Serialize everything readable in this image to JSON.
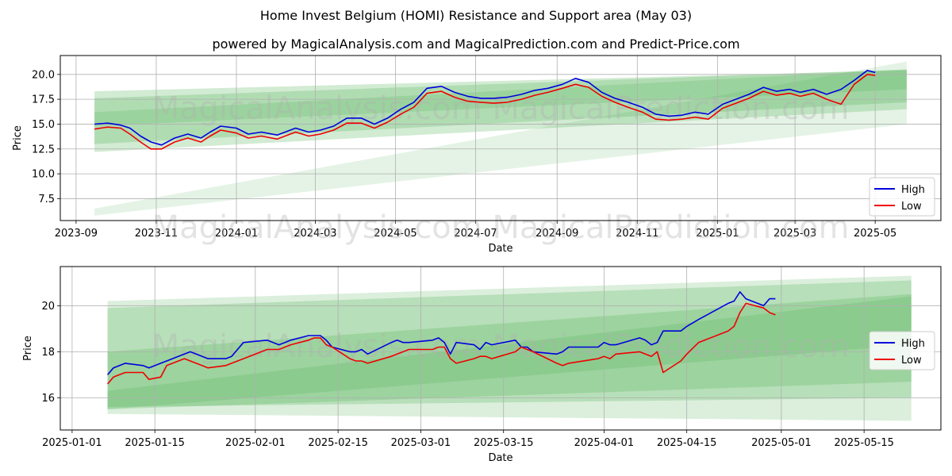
{
  "title": "Home Invest Belgium (HOMI) Resistance and Support area (May 03)",
  "subtitle": "powered by MagicalAnalysis.com and MagicalPrediction.com and Predict-Price.com",
  "watermarks": [
    "MagicalAnalysis.com",
    "MagicalPrediction.com"
  ],
  "colors": {
    "high": "#0000dd",
    "low": "#ee0000",
    "band": "#4caf50",
    "grid": "#b0b0b0"
  },
  "chart_data": [
    {
      "type": "line",
      "xlabel": "Date",
      "ylabel": "Price",
      "x_ticks": [
        "2023-09",
        "2023-11",
        "2024-01",
        "2024-03",
        "2024-05",
        "2024-07",
        "2024-09",
        "2024-11",
        "2025-01",
        "2025-03",
        "2025-05"
      ],
      "y_ticks": [
        "7.5",
        "10.0",
        "12.5",
        "15.0",
        "17.5",
        "20.0"
      ],
      "xlim": [
        "2023-08-20",
        "2025-06-20"
      ],
      "ylim": [
        5.3,
        21.9
      ],
      "grid": true,
      "legend": {
        "position": "lower right",
        "entries": [
          "High",
          "Low"
        ]
      },
      "bands": [
        {
          "x": [
            "2023-09-15",
            "2025-05-25"
          ],
          "upper": [
            18.3,
            20.4
          ],
          "lower": [
            12.2,
            16.5
          ],
          "opacity": 0.25
        },
        {
          "x": [
            "2023-09-15",
            "2025-05-25"
          ],
          "upper": [
            17.6,
            20.5
          ],
          "lower": [
            13.0,
            17.2
          ],
          "opacity": 0.25
        },
        {
          "x": [
            "2023-09-15",
            "2025-05-25"
          ],
          "upper": [
            16.2,
            20.5
          ],
          "lower": [
            14.8,
            18.5
          ],
          "opacity": 0.2
        },
        {
          "x": [
            "2023-09-15",
            "2025-05-25"
          ],
          "upper": [
            6.5,
            21.3
          ],
          "lower": [
            5.8,
            15.0
          ],
          "opacity": 0.15
        }
      ],
      "series": [
        {
          "name": "High",
          "x": [
            "2023-09-15",
            "2023-09-25",
            "2023-10-05",
            "2023-10-12",
            "2023-10-20",
            "2023-10-28",
            "2023-11-05",
            "2023-11-15",
            "2023-11-25",
            "2023-12-05",
            "2023-12-12",
            "2023-12-20",
            "2024-01-01",
            "2024-01-10",
            "2024-01-20",
            "2024-02-01",
            "2024-02-15",
            "2024-02-25",
            "2024-03-05",
            "2024-03-15",
            "2024-03-25",
            "2024-04-05",
            "2024-04-15",
            "2024-04-25",
            "2024-05-05",
            "2024-05-15",
            "2024-05-25",
            "2024-06-05",
            "2024-06-15",
            "2024-06-25",
            "2024-07-05",
            "2024-07-15",
            "2024-07-25",
            "2024-08-05",
            "2024-08-15",
            "2024-08-25",
            "2024-09-05",
            "2024-09-15",
            "2024-09-25",
            "2024-10-05",
            "2024-10-15",
            "2024-10-25",
            "2024-11-05",
            "2024-11-15",
            "2024-11-25",
            "2024-12-05",
            "2024-12-15",
            "2024-12-25",
            "2025-01-05",
            "2025-01-15",
            "2025-01-25",
            "2025-02-05",
            "2025-02-15",
            "2025-02-25",
            "2025-03-05",
            "2025-03-15",
            "2025-03-25",
            "2025-04-05",
            "2025-04-15",
            "2025-04-25",
            "2025-05-01"
          ],
          "values": [
            15.0,
            15.1,
            14.9,
            14.6,
            13.8,
            13.2,
            12.9,
            13.6,
            14.0,
            13.6,
            14.2,
            14.8,
            14.6,
            14.0,
            14.2,
            13.9,
            14.6,
            14.2,
            14.4,
            14.8,
            15.6,
            15.6,
            15.0,
            15.6,
            16.5,
            17.2,
            18.6,
            18.8,
            18.2,
            17.8,
            17.6,
            17.6,
            17.7,
            18.0,
            18.4,
            18.6,
            19.0,
            19.6,
            19.2,
            18.2,
            17.6,
            17.2,
            16.7,
            16.0,
            15.8,
            15.9,
            16.2,
            16.0,
            17.0,
            17.5,
            18.0,
            18.7,
            18.3,
            18.5,
            18.2,
            18.5,
            18.0,
            18.5,
            19.4,
            20.4,
            20.2
          ]
        },
        {
          "name": "Low",
          "x": [
            "2023-09-15",
            "2023-09-25",
            "2023-10-05",
            "2023-10-12",
            "2023-10-20",
            "2023-10-28",
            "2023-11-05",
            "2023-11-15",
            "2023-11-25",
            "2023-12-05",
            "2023-12-12",
            "2023-12-20",
            "2024-01-01",
            "2024-01-10",
            "2024-01-20",
            "2024-02-01",
            "2024-02-15",
            "2024-02-25",
            "2024-03-05",
            "2024-03-15",
            "2024-03-25",
            "2024-04-05",
            "2024-04-15",
            "2024-04-25",
            "2024-05-05",
            "2024-05-15",
            "2024-05-25",
            "2024-06-05",
            "2024-06-15",
            "2024-06-25",
            "2024-07-05",
            "2024-07-15",
            "2024-07-25",
            "2024-08-05",
            "2024-08-15",
            "2024-08-25",
            "2024-09-05",
            "2024-09-15",
            "2024-09-25",
            "2024-10-05",
            "2024-10-15",
            "2024-10-25",
            "2024-11-05",
            "2024-11-15",
            "2024-11-25",
            "2024-12-05",
            "2024-12-15",
            "2024-12-25",
            "2025-01-05",
            "2025-01-15",
            "2025-01-25",
            "2025-02-05",
            "2025-02-15",
            "2025-02-25",
            "2025-03-05",
            "2025-03-15",
            "2025-03-25",
            "2025-04-05",
            "2025-04-15",
            "2025-04-25",
            "2025-05-01"
          ],
          "values": [
            14.5,
            14.7,
            14.6,
            14.0,
            13.2,
            12.5,
            12.5,
            13.2,
            13.6,
            13.2,
            13.8,
            14.4,
            14.1,
            13.6,
            13.8,
            13.5,
            14.2,
            13.8,
            14.0,
            14.4,
            15.1,
            15.1,
            14.6,
            15.2,
            16.0,
            16.7,
            18.1,
            18.3,
            17.7,
            17.3,
            17.2,
            17.1,
            17.2,
            17.5,
            17.9,
            18.2,
            18.6,
            19.0,
            18.7,
            17.8,
            17.2,
            16.7,
            16.2,
            15.5,
            15.4,
            15.5,
            15.7,
            15.5,
            16.6,
            17.1,
            17.6,
            18.3,
            17.9,
            18.1,
            17.8,
            18.1,
            17.5,
            17.0,
            19.0,
            20.0,
            19.9
          ]
        }
      ]
    },
    {
      "type": "line",
      "xlabel": "Date",
      "ylabel": "Price",
      "x_ticks": [
        "2025-01-01",
        "2025-01-15",
        "2025-02-01",
        "2025-02-15",
        "2025-03-01",
        "2025-03-15",
        "2025-04-01",
        "2025-04-15",
        "2025-05-01",
        "2025-05-15"
      ],
      "y_ticks": [
        "16",
        "18",
        "20"
      ],
      "xlim": [
        "2024-12-30",
        "2025-05-28"
      ],
      "ylim": [
        14.6,
        21.7
      ],
      "grid": true,
      "legend": {
        "position": "center right",
        "entries": [
          "High",
          "Low"
        ]
      },
      "bands": [
        {
          "x": [
            "2025-01-07",
            "2025-05-23"
          ],
          "upper": [
            20.2,
            21.3
          ],
          "lower": [
            15.3,
            15.0
          ],
          "opacity": 0.2
        },
        {
          "x": [
            "2025-01-07",
            "2025-05-23"
          ],
          "upper": [
            19.9,
            21.1
          ],
          "lower": [
            15.6,
            16.0
          ],
          "opacity": 0.25
        },
        {
          "x": [
            "2025-01-07",
            "2025-05-23"
          ],
          "upper": [
            18.0,
            20.5
          ],
          "lower": [
            15.5,
            16.7
          ],
          "opacity": 0.25
        },
        {
          "x": [
            "2025-01-07",
            "2025-05-23"
          ],
          "upper": [
            16.3,
            20.4
          ],
          "lower": [
            15.5,
            18.3
          ],
          "opacity": 0.2
        }
      ],
      "series": [
        {
          "name": "High",
          "x": [
            "2025-01-07",
            "2025-01-08",
            "2025-01-10",
            "2025-01-13",
            "2025-01-14",
            "2025-01-16",
            "2025-01-17",
            "2025-01-20",
            "2025-01-21",
            "2025-01-22",
            "2025-01-23",
            "2025-01-24",
            "2025-01-27",
            "2025-01-28",
            "2025-01-30",
            "2025-02-03",
            "2025-02-05",
            "2025-02-06",
            "2025-02-07",
            "2025-02-10",
            "2025-02-11",
            "2025-02-12",
            "2025-02-13",
            "2025-02-14",
            "2025-02-17",
            "2025-02-18",
            "2025-02-19",
            "2025-02-20",
            "2025-02-24",
            "2025-02-25",
            "2025-02-26",
            "2025-02-27",
            "2025-03-03",
            "2025-03-04",
            "2025-03-05",
            "2025-03-06",
            "2025-03-07",
            "2025-03-10",
            "2025-03-11",
            "2025-03-12",
            "2025-03-13",
            "2025-03-17",
            "2025-03-18",
            "2025-03-19",
            "2025-03-20",
            "2025-03-24",
            "2025-03-25",
            "2025-03-26",
            "2025-03-31",
            "2025-04-01",
            "2025-04-02",
            "2025-04-03",
            "2025-04-07",
            "2025-04-08",
            "2025-04-09",
            "2025-04-10",
            "2025-04-11",
            "2025-04-14",
            "2025-04-15",
            "2025-04-17",
            "2025-04-22",
            "2025-04-23",
            "2025-04-24",
            "2025-04-25",
            "2025-04-28",
            "2025-04-29",
            "2025-04-30"
          ],
          "values": [
            17.0,
            17.3,
            17.5,
            17.4,
            17.3,
            17.5,
            17.6,
            17.9,
            18.0,
            17.9,
            17.8,
            17.7,
            17.7,
            17.8,
            18.4,
            18.5,
            18.3,
            18.4,
            18.5,
            18.7,
            18.7,
            18.7,
            18.5,
            18.2,
            18.0,
            18.0,
            18.1,
            17.9,
            18.4,
            18.5,
            18.4,
            18.4,
            18.5,
            18.6,
            18.4,
            17.9,
            18.4,
            18.3,
            18.1,
            18.4,
            18.3,
            18.5,
            18.2,
            18.2,
            18.0,
            17.9,
            18.0,
            18.2,
            18.2,
            18.4,
            18.3,
            18.3,
            18.6,
            18.5,
            18.3,
            18.4,
            18.9,
            18.9,
            19.1,
            19.4,
            20.1,
            20.2,
            20.6,
            20.3,
            20.0,
            20.3,
            20.3
          ]
        },
        {
          "name": "Low",
          "x": [
            "2025-01-07",
            "2025-01-08",
            "2025-01-10",
            "2025-01-13",
            "2025-01-14",
            "2025-01-16",
            "2025-01-17",
            "2025-01-20",
            "2025-01-21",
            "2025-01-22",
            "2025-01-23",
            "2025-01-24",
            "2025-01-27",
            "2025-01-28",
            "2025-01-30",
            "2025-02-03",
            "2025-02-05",
            "2025-02-06",
            "2025-02-07",
            "2025-02-10",
            "2025-02-11",
            "2025-02-12",
            "2025-02-13",
            "2025-02-14",
            "2025-02-17",
            "2025-02-18",
            "2025-02-19",
            "2025-02-20",
            "2025-02-24",
            "2025-02-25",
            "2025-02-26",
            "2025-02-27",
            "2025-03-03",
            "2025-03-04",
            "2025-03-05",
            "2025-03-06",
            "2025-03-07",
            "2025-03-10",
            "2025-03-11",
            "2025-03-12",
            "2025-03-13",
            "2025-03-17",
            "2025-03-18",
            "2025-03-19",
            "2025-03-20",
            "2025-03-24",
            "2025-03-25",
            "2025-03-26",
            "2025-03-31",
            "2025-04-01",
            "2025-04-02",
            "2025-04-03",
            "2025-04-07",
            "2025-04-08",
            "2025-04-09",
            "2025-04-10",
            "2025-04-11",
            "2025-04-14",
            "2025-04-15",
            "2025-04-17",
            "2025-04-22",
            "2025-04-23",
            "2025-04-24",
            "2025-04-25",
            "2025-04-28",
            "2025-04-29",
            "2025-04-30"
          ],
          "values": [
            16.6,
            16.9,
            17.1,
            17.1,
            16.8,
            16.9,
            17.4,
            17.7,
            17.6,
            17.5,
            17.4,
            17.3,
            17.4,
            17.5,
            17.7,
            18.1,
            18.1,
            18.2,
            18.3,
            18.5,
            18.6,
            18.6,
            18.3,
            18.2,
            17.7,
            17.6,
            17.6,
            17.5,
            17.8,
            17.9,
            18.0,
            18.1,
            18.1,
            18.2,
            18.2,
            17.7,
            17.5,
            17.7,
            17.8,
            17.8,
            17.7,
            18.0,
            18.2,
            18.1,
            18.0,
            17.5,
            17.4,
            17.5,
            17.7,
            17.8,
            17.7,
            17.9,
            18.0,
            17.9,
            17.8,
            18.0,
            17.1,
            17.6,
            17.9,
            18.4,
            18.9,
            19.1,
            19.7,
            20.1,
            19.9,
            19.7,
            19.6
          ]
        }
      ]
    }
  ]
}
